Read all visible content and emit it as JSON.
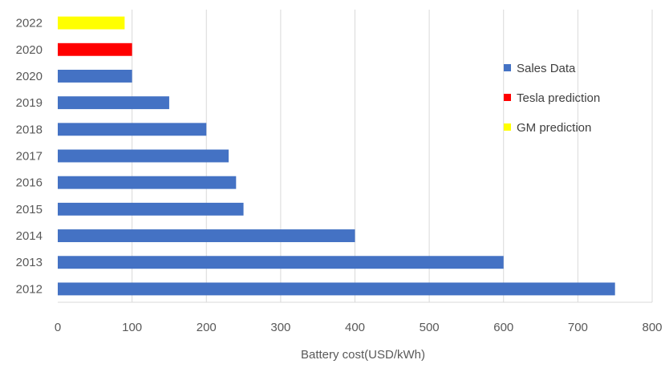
{
  "chart_data": {
    "type": "bar",
    "orientation": "horizontal",
    "categories": [
      "2012",
      "2013",
      "2014",
      "2015",
      "2016",
      "2017",
      "2018",
      "2019",
      "2020",
      "2020",
      "2022"
    ],
    "series": [
      {
        "name": "Sales Data",
        "color": "#4472c4",
        "values": [
          750,
          600,
          400,
          250,
          240,
          230,
          200,
          150,
          100,
          null,
          null
        ]
      },
      {
        "name": "Tesla prediction",
        "color": "#ff0000",
        "values": [
          null,
          null,
          null,
          null,
          null,
          null,
          null,
          null,
          null,
          100,
          null
        ]
      },
      {
        "name": "GM prediction",
        "color": "#ffff00",
        "values": [
          null,
          null,
          null,
          null,
          null,
          null,
          null,
          null,
          null,
          null,
          90
        ]
      }
    ],
    "xlabel": "Battery cost(USD/kWh)",
    "xlim": [
      0,
      800
    ],
    "xticks": [
      0,
      100,
      200,
      300,
      400,
      500,
      600,
      700,
      800
    ],
    "grid": "vertical",
    "legend_position": "right"
  }
}
